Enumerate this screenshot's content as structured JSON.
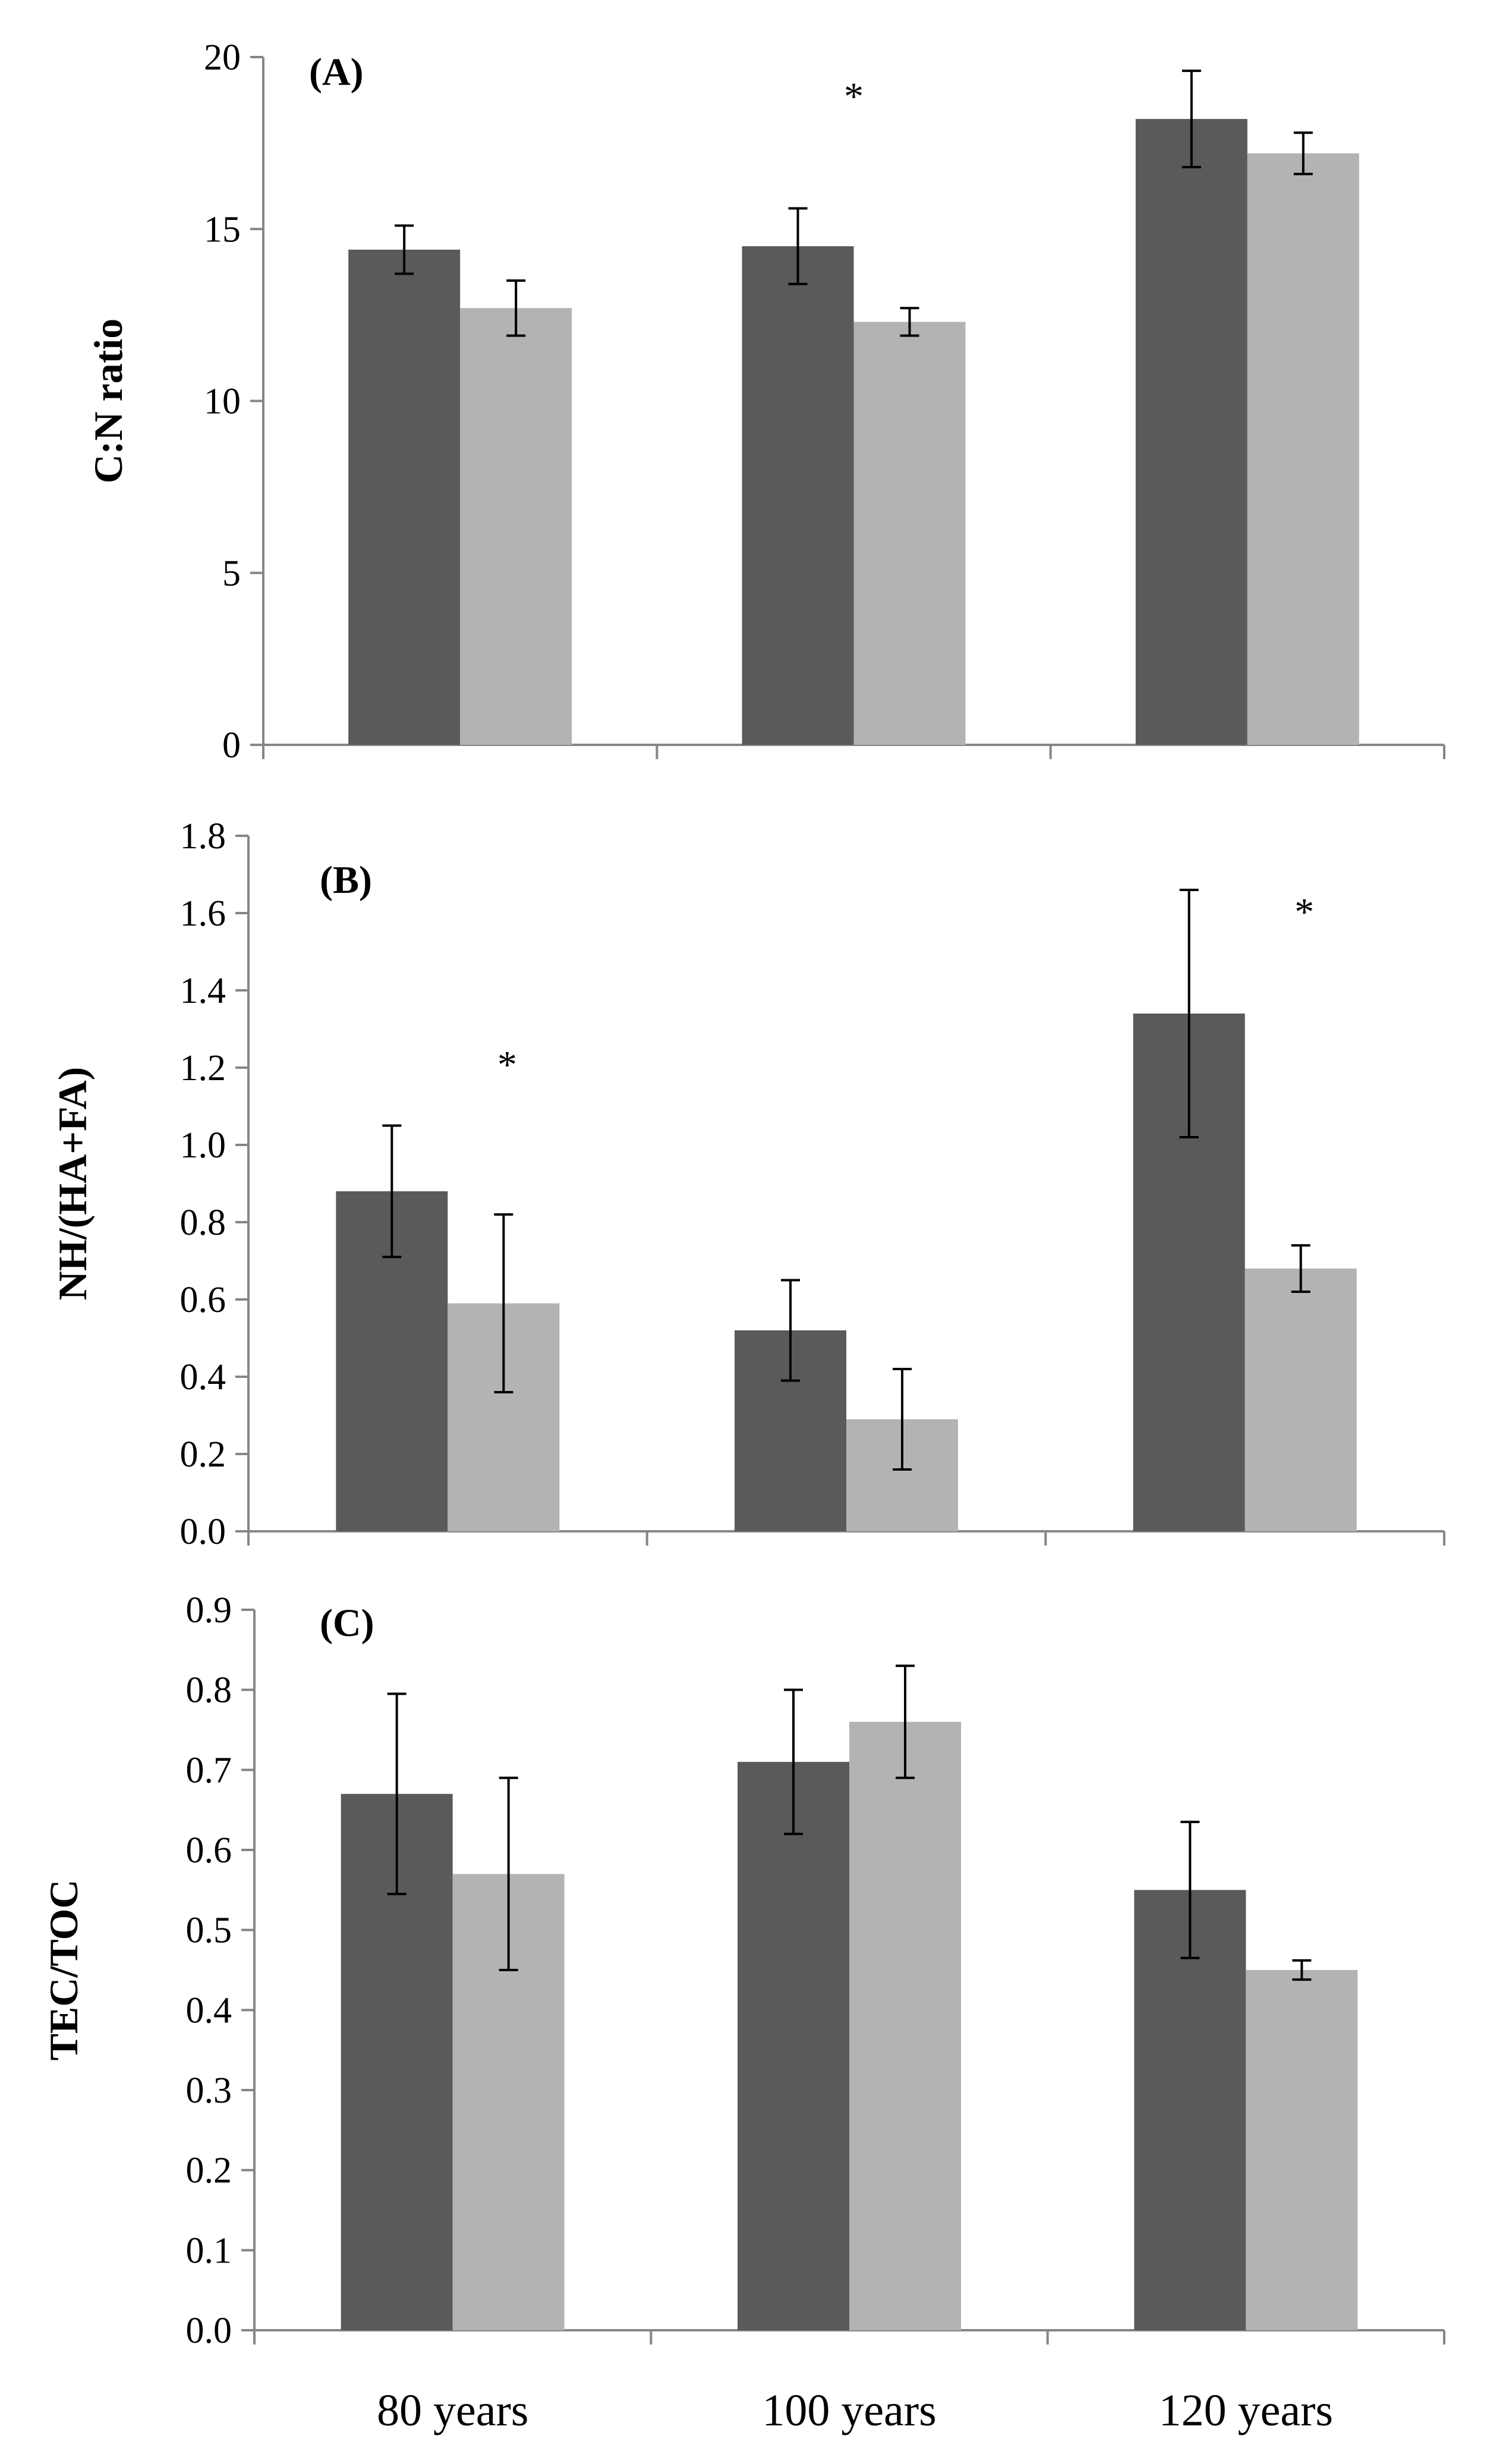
{
  "colors": {
    "series_dark": "#5a5a5a",
    "series_light": "#b3b3b3",
    "axis": "#868686",
    "error_bar": "#000000"
  },
  "chart_data": [
    {
      "type": "bar",
      "panel_label": "(A)",
      "ylabel": "C:N ratio",
      "categories": [
        "80 years",
        "100 years",
        "120 years"
      ],
      "ylim": [
        0,
        20
      ],
      "yticks": [
        0,
        5,
        10,
        15,
        20
      ],
      "ytick_labels": [
        "0",
        "5",
        "10",
        "15",
        "20"
      ],
      "series": [
        {
          "name": "dark",
          "values": [
            14.4,
            14.5,
            18.2
          ],
          "errors": [
            0.7,
            1.1,
            1.4
          ]
        },
        {
          "name": "light",
          "values": [
            12.7,
            12.3,
            17.2
          ],
          "errors": [
            0.8,
            0.4,
            0.6
          ]
        }
      ],
      "significance": [
        {
          "category": "100 years",
          "label": "*"
        }
      ]
    },
    {
      "type": "bar",
      "panel_label": "(B)",
      "ylabel": "NH/(HA+FA)",
      "categories": [
        "80 years",
        "100 years",
        "120 years"
      ],
      "ylim": [
        0,
        1.8
      ],
      "yticks": [
        0,
        0.2,
        0.4,
        0.6,
        0.8,
        1.0,
        1.2,
        1.4,
        1.6,
        1.8
      ],
      "ytick_labels": [
        "0.0",
        "0.2",
        "0.4",
        "0.6",
        "0.8",
        "1.0",
        "1.2",
        "1.4",
        "1.6",
        "1.8"
      ],
      "series": [
        {
          "name": "dark",
          "values": [
            0.88,
            0.52,
            1.34
          ],
          "errors": [
            0.17,
            0.13,
            0.32
          ]
        },
        {
          "name": "light",
          "values": [
            0.59,
            0.29,
            0.68
          ],
          "errors": [
            0.23,
            0.13,
            0.06
          ]
        }
      ],
      "significance": [
        {
          "category": "80 years",
          "label": "*"
        },
        {
          "category": "120 years",
          "label": "*"
        }
      ]
    },
    {
      "type": "bar",
      "panel_label": "(C)",
      "ylabel": "TEC/TOC",
      "xtick_labels": [
        "80 years",
        "100 years",
        "120 years"
      ],
      "categories": [
        "80 years",
        "100 years",
        "120 years"
      ],
      "ylim": [
        0,
        0.9
      ],
      "yticks": [
        0,
        0.1,
        0.2,
        0.3,
        0.4,
        0.5,
        0.6,
        0.7,
        0.8,
        0.9
      ],
      "ytick_labels": [
        "0.0",
        "0.1",
        "0.2",
        "0.3",
        "0.4",
        "0.5",
        "0.6",
        "0.7",
        "0.8",
        "0.9"
      ],
      "series": [
        {
          "name": "dark",
          "values": [
            0.67,
            0.71,
            0.55
          ],
          "errors": [
            0.125,
            0.09,
            0.085
          ]
        },
        {
          "name": "light",
          "values": [
            0.57,
            0.76,
            0.45
          ],
          "errors": [
            0.12,
            0.07,
            0.012
          ]
        }
      ],
      "significance": []
    }
  ]
}
